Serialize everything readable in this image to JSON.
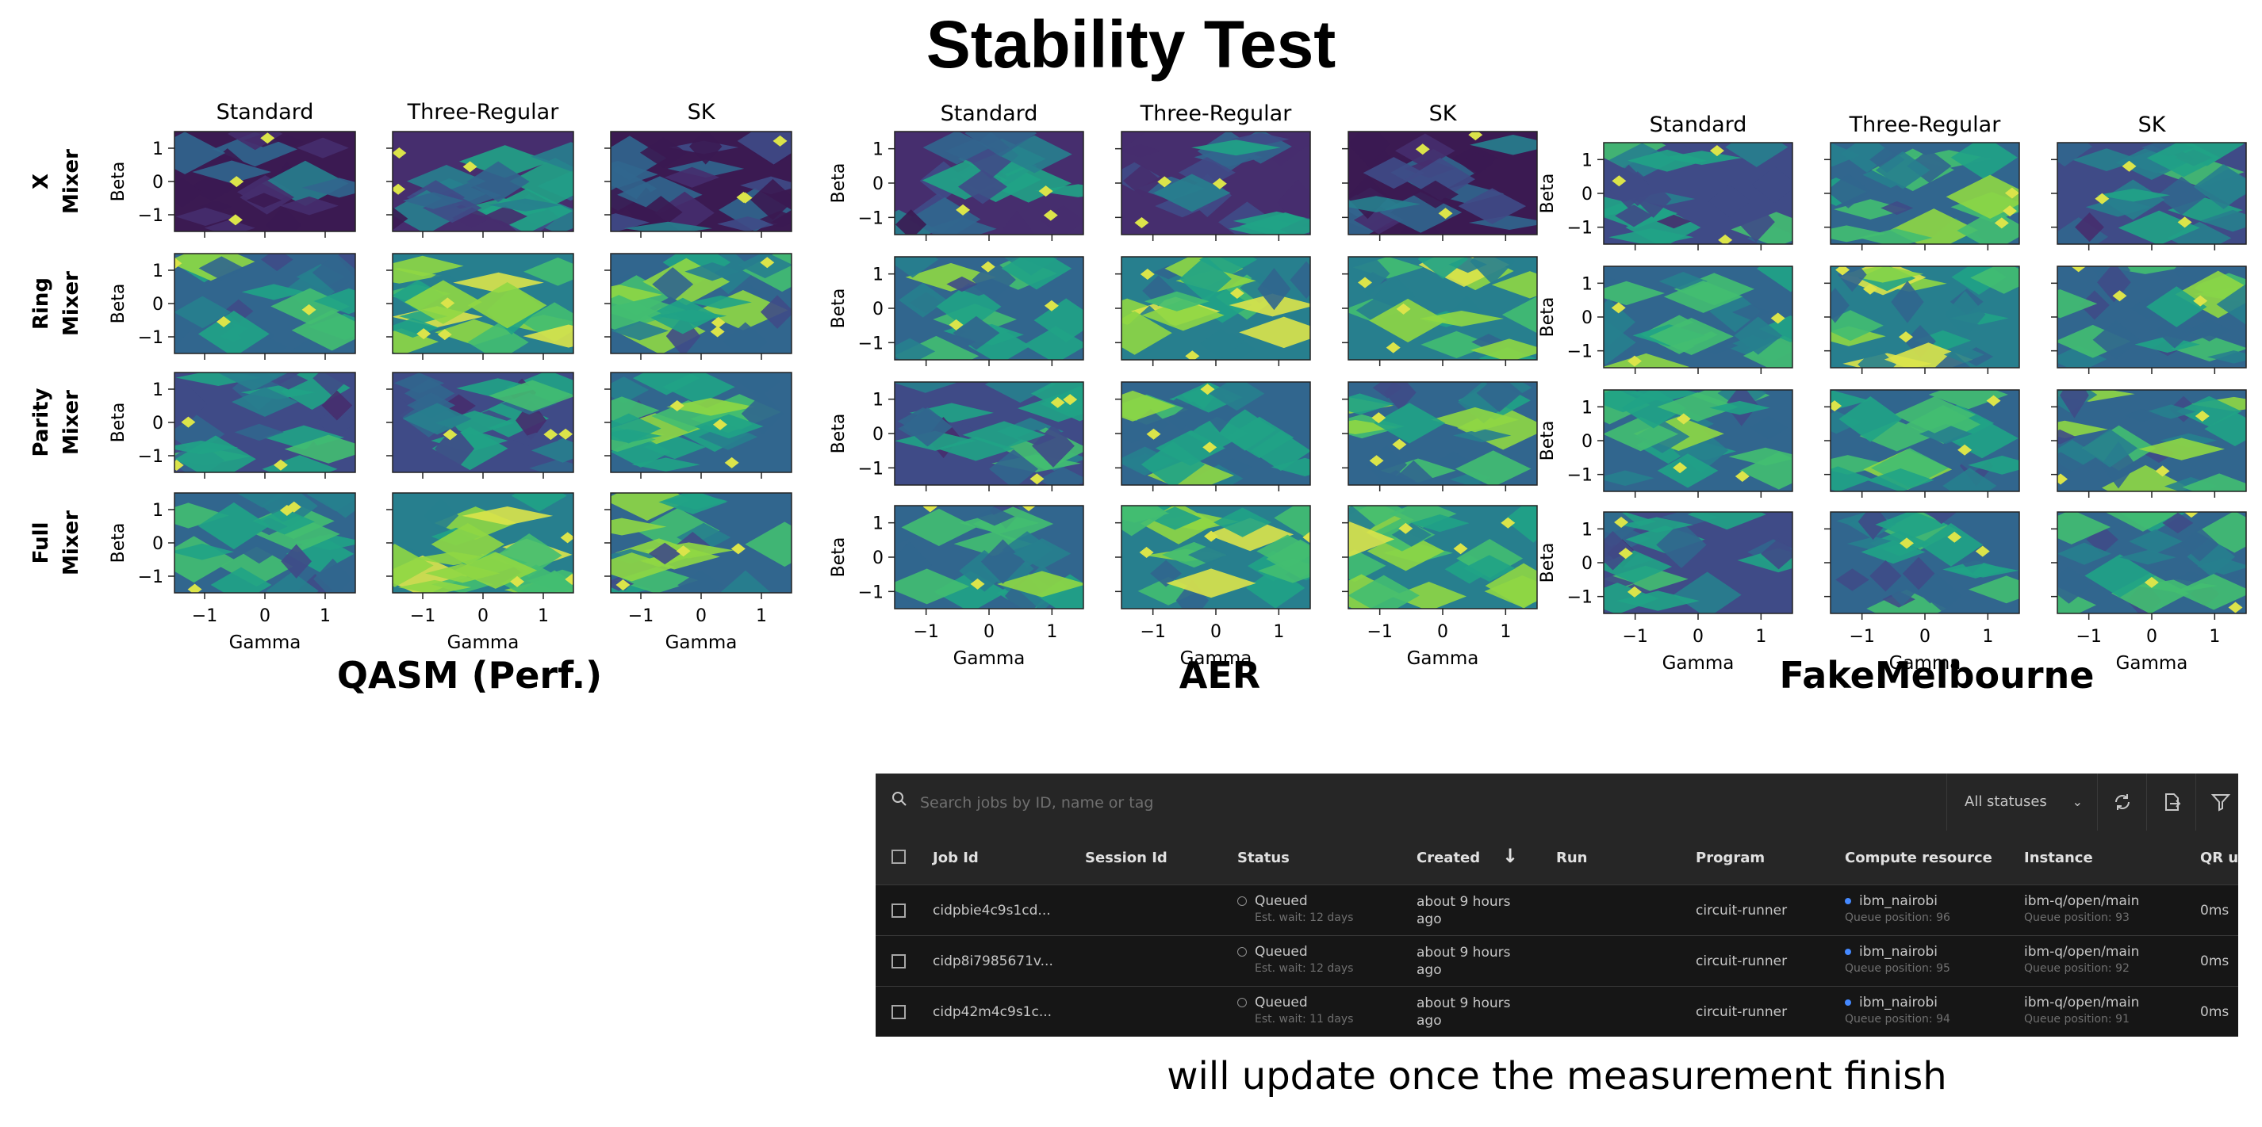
{
  "title": "Stability Test",
  "footer_note": "will update once the measurement finish",
  "colors": {
    "viridis": [
      "#3b1a52",
      "#462e6e",
      "#3f4b87",
      "#31668e",
      "#277f8e",
      "#20a386",
      "#42be71",
      "#8fd744",
      "#dbe44a"
    ],
    "table_bg": "#161616",
    "table_header_bg": "#262626",
    "accent_blue": "#4589ff"
  },
  "chart_data": [
    {
      "type": "heatmap",
      "group_label": "QASM (Perf.)",
      "columns": [
        "Standard",
        "Three-Regular",
        "SK"
      ],
      "rows": [
        {
          "label": [
            "X",
            "Mixer"
          ],
          "levels": [
            1,
            2,
            1
          ]
        },
        {
          "label": [
            "Ring",
            "Mixer"
          ],
          "levels": [
            4,
            5,
            4
          ]
        },
        {
          "label": [
            "Parity",
            "Mixer"
          ],
          "levels": [
            3,
            3,
            4
          ]
        },
        {
          "label": [
            "Full",
            "Mixer"
          ],
          "levels": [
            4,
            5,
            4
          ]
        }
      ],
      "xlabel": "Gamma",
      "ylabel": "Beta",
      "xticks": [
        "−1",
        "0",
        "1"
      ],
      "yticks": [
        "1",
        "0",
        "−1"
      ],
      "xlim": [
        -1.5,
        1.5
      ],
      "ylim": [
        -1.5,
        1.5
      ],
      "grid": false
    },
    {
      "type": "heatmap",
      "group_label": "AER",
      "columns": [
        "Standard",
        "Three-Regular",
        "SK"
      ],
      "rows": [
        {
          "label": [],
          "levels": [
            2,
            2,
            1
          ]
        },
        {
          "label": [],
          "levels": [
            4,
            5,
            5
          ]
        },
        {
          "label": [],
          "levels": [
            3,
            4,
            4
          ]
        },
        {
          "label": [],
          "levels": [
            4,
            5,
            5
          ]
        }
      ],
      "xlabel": "Gamma",
      "ylabel": "Beta",
      "xticks": [
        "−1",
        "0",
        "1"
      ],
      "yticks": [
        "1",
        "0",
        "−1"
      ],
      "xlim": [
        -1.5,
        1.5
      ],
      "ylim": [
        -1.5,
        1.5
      ],
      "grid": false
    },
    {
      "type": "heatmap",
      "group_label": "FakeMelbourne",
      "columns": [
        "Standard",
        "Three-Regular",
        "SK"
      ],
      "rows": [
        {
          "label": [],
          "levels": [
            3,
            4,
            3
          ]
        },
        {
          "label": [],
          "levels": [
            4,
            5,
            4
          ]
        },
        {
          "label": [],
          "levels": [
            4,
            4,
            4
          ]
        },
        {
          "label": [],
          "levels": [
            3,
            4,
            4
          ]
        }
      ],
      "xlabel": "Gamma",
      "ylabel": "Beta",
      "xticks": [
        "−1",
        "0",
        "1"
      ],
      "yticks": [
        "1",
        "0",
        "−1"
      ],
      "xlim": [
        -1.5,
        1.5
      ],
      "ylim": [
        -1.5,
        1.5
      ],
      "grid": false
    }
  ],
  "jobs": {
    "search_placeholder": "Search jobs by ID, name or tag",
    "status_filter": "All statuses",
    "columns": [
      "Job Id",
      "Session Id",
      "Status",
      "Created",
      "Run",
      "Program",
      "Compute resource",
      "Instance",
      "QR u"
    ],
    "rows": [
      {
        "job_id": "cidpbie4c9s1cd...",
        "session_id": "",
        "status": "Queued",
        "est_wait": "Est. wait: 12 days",
        "created_line1": "about 9 hours",
        "created_line2": "ago",
        "run": "",
        "program": "circuit-runner",
        "compute": "ibm_nairobi",
        "compute_queue": "Queue position: 96",
        "instance": "ibm-q/open/main",
        "instance_queue": "Queue position: 93",
        "qr": "0ms"
      },
      {
        "job_id": "cidp8i7985671v...",
        "session_id": "",
        "status": "Queued",
        "est_wait": "Est. wait: 12 days",
        "created_line1": "about 9 hours",
        "created_line2": "ago",
        "run": "",
        "program": "circuit-runner",
        "compute": "ibm_nairobi",
        "compute_queue": "Queue position: 95",
        "instance": "ibm-q/open/main",
        "instance_queue": "Queue position: 92",
        "qr": "0ms"
      },
      {
        "job_id": "cidp42m4c9s1c...",
        "session_id": "",
        "status": "Queued",
        "est_wait": "Est. wait: 11 days",
        "created_line1": "about 9 hours",
        "created_line2": "ago",
        "run": "",
        "program": "circuit-runner",
        "compute": "ibm_nairobi",
        "compute_queue": "Queue position: 94",
        "instance": "ibm-q/open/main",
        "instance_queue": "Queue position: 91",
        "qr": "0ms"
      }
    ]
  }
}
